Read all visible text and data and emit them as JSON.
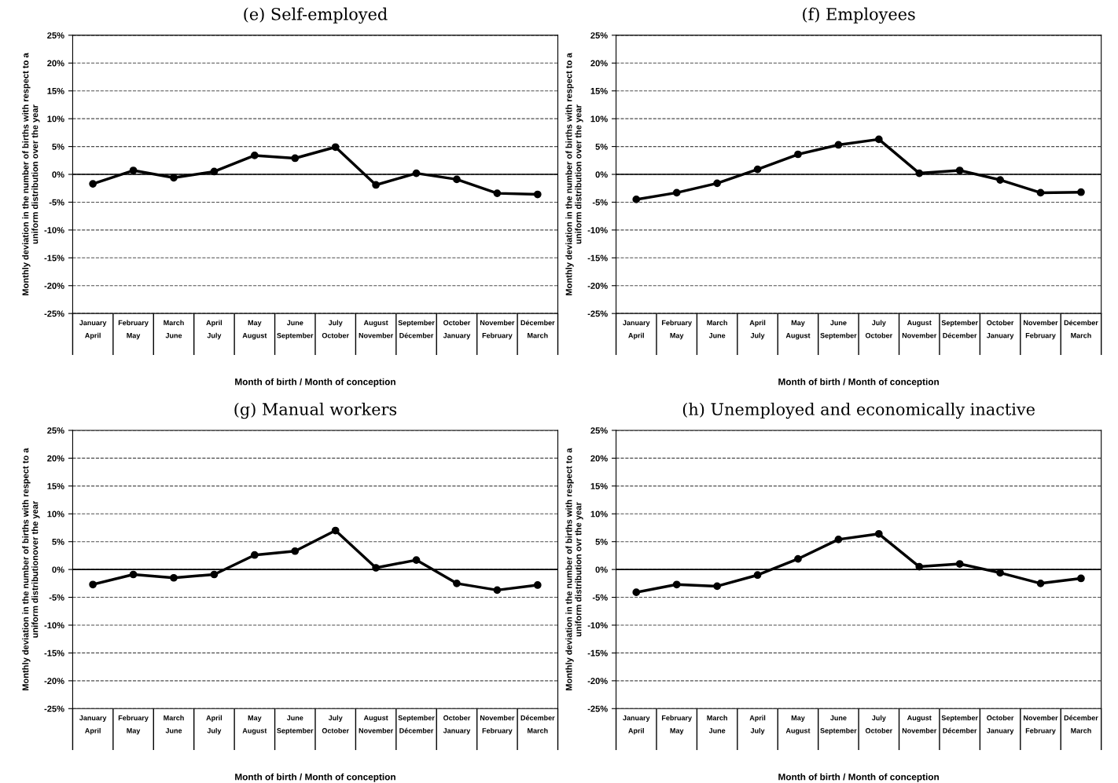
{
  "chart_data": [
    {
      "type": "line",
      "title": "(e) Self-employed",
      "xlabel": "Month of birth / Month of conception",
      "ylabel": "Monthly deviation in the number of births with respect to a\nuniform distribution over the year",
      "categories": [
        "January\nApril",
        "February\nMay",
        "March\nJune",
        "April\nJuly",
        "May\nAugust",
        "June\nSeptember",
        "July\nOctober",
        "August\nNovember",
        "September\nDécember",
        "October\nJanuary",
        "November\nFebruary",
        "Décember\nMarch"
      ],
      "series": [
        {
          "color": "#000000",
          "values": [
            -1.7,
            0.7,
            -0.6,
            0.5,
            3.4,
            2.9,
            4.9,
            -1.9,
            0.2,
            -0.9,
            -3.4,
            -3.6
          ]
        }
      ],
      "ylim": [
        -25,
        25
      ],
      "yticks": [
        {
          "value": -25,
          "label": "-25%"
        },
        {
          "value": -20,
          "label": "-20%"
        },
        {
          "value": -15,
          "label": "-15%"
        },
        {
          "value": -10,
          "label": "-10%"
        },
        {
          "value": -5,
          "label": "-5%"
        },
        {
          "value": 0,
          "label": "0%"
        },
        {
          "value": 5,
          "label": "5%"
        },
        {
          "value": 10,
          "label": "10%"
        },
        {
          "value": 15,
          "label": "15%"
        },
        {
          "value": 20,
          "label": "20%"
        },
        {
          "value": 25,
          "label": "25%"
        }
      ],
      "ref_lines": [
        {
          "axis": "y",
          "value": 0,
          "color": "#000000",
          "line_style": "solid"
        }
      ],
      "grid": "y",
      "marker": "circle",
      "line_style": "solid",
      "legend": false
    },
    {
      "type": "line",
      "title": "(f) Employees",
      "xlabel": "Month of birth / Month of conception",
      "ylabel": "Monthly deviation in the number of births with respect to a\nuniform distribution over the year",
      "categories": [
        "January\nApril",
        "February\nMay",
        "March\nJune",
        "April\nJuly",
        "May\nAugust",
        "June\nSeptember",
        "July\nOctober",
        "August\nNovember",
        "September\nDécember",
        "October\nJanuary",
        "November\nFebruary",
        "Décember\nMarch"
      ],
      "series": [
        {
          "color": "#000000",
          "values": [
            -4.5,
            -3.3,
            -1.6,
            0.9,
            3.6,
            5.3,
            6.3,
            0.2,
            0.7,
            -1.0,
            -3.3,
            -3.2
          ]
        }
      ],
      "ylim": [
        -25,
        25
      ],
      "yticks": [
        {
          "value": -25,
          "label": "-25%"
        },
        {
          "value": -20,
          "label": "-20%"
        },
        {
          "value": -15,
          "label": "-15%"
        },
        {
          "value": -10,
          "label": "-10%"
        },
        {
          "value": -5,
          "label": "-5%"
        },
        {
          "value": 0,
          "label": "0%"
        },
        {
          "value": 5,
          "label": "5%"
        },
        {
          "value": 10,
          "label": "10%"
        },
        {
          "value": 15,
          "label": "15%"
        },
        {
          "value": 20,
          "label": "20%"
        },
        {
          "value": 25,
          "label": "25%"
        }
      ],
      "ref_lines": [
        {
          "axis": "y",
          "value": 0,
          "color": "#000000",
          "line_style": "solid"
        }
      ],
      "grid": "y",
      "marker": "circle",
      "line_style": "solid",
      "legend": false
    },
    {
      "type": "line",
      "title": "(g) Manual workers",
      "xlabel": "Month of birth / Month of conception",
      "ylabel": "Monthly deviation in the number of births with respect to a\nuniform distributionover the year",
      "categories": [
        "January\nApril",
        "February\nMay",
        "March\nJune",
        "April\nJuly",
        "May\nAugust",
        "June\nSeptember",
        "July\nOctober",
        "August\nNovember",
        "September\nDécember",
        "October\nJanuary",
        "November\nFebruary",
        "Décember\nMarch"
      ],
      "series": [
        {
          "color": "#000000",
          "values": [
            -2.7,
            -0.9,
            -1.5,
            -0.9,
            2.6,
            3.3,
            7.0,
            0.3,
            1.7,
            -2.5,
            -3.7,
            -2.8
          ]
        }
      ],
      "ylim": [
        -25,
        25
      ],
      "yticks": [
        {
          "value": -25,
          "label": "-25%"
        },
        {
          "value": -20,
          "label": "-20%"
        },
        {
          "value": -15,
          "label": "-15%"
        },
        {
          "value": -10,
          "label": "-10%"
        },
        {
          "value": -5,
          "label": "-5%"
        },
        {
          "value": 0,
          "label": "0%"
        },
        {
          "value": 5,
          "label": "5%"
        },
        {
          "value": 10,
          "label": "10%"
        },
        {
          "value": 15,
          "label": "15%"
        },
        {
          "value": 20,
          "label": "20%"
        },
        {
          "value": 25,
          "label": "25%"
        }
      ],
      "ref_lines": [
        {
          "axis": "y",
          "value": 0,
          "color": "#000000",
          "line_style": "solid"
        }
      ],
      "grid": "y",
      "marker": "circle",
      "line_style": "solid",
      "legend": false
    },
    {
      "type": "line",
      "title": "(h) Unemployed and economically inactive",
      "xlabel": "Month of birth / Month of conception",
      "ylabel": "Monthly deviation in the number of births with respect to a\nuniform distribution ovr the year",
      "categories": [
        "January\nApril",
        "February\nMay",
        "March\nJune",
        "April\nJuly",
        "May\nAugust",
        "June\nSeptember",
        "July\nOctober",
        "August\nNovember",
        "September\nDécember",
        "October\nJanuary",
        "November\nFebruary",
        "Décember\nMarch"
      ],
      "series": [
        {
          "color": "#000000",
          "values": [
            -4.1,
            -2.7,
            -3.0,
            -1.0,
            1.9,
            5.4,
            6.4,
            0.5,
            1.0,
            -0.6,
            -2.5,
            -1.6
          ]
        }
      ],
      "ylim": [
        -25,
        25
      ],
      "yticks": [
        {
          "value": -25,
          "label": "-25%"
        },
        {
          "value": -20,
          "label": "-20%"
        },
        {
          "value": -15,
          "label": "-15%"
        },
        {
          "value": -10,
          "label": "-10%"
        },
        {
          "value": -5,
          "label": "-5%"
        },
        {
          "value": 0,
          "label": "0%"
        },
        {
          "value": 5,
          "label": "5%"
        },
        {
          "value": 10,
          "label": "10%"
        },
        {
          "value": 15,
          "label": "15%"
        },
        {
          "value": 20,
          "label": "20%"
        },
        {
          "value": 25,
          "label": "25%"
        }
      ],
      "ref_lines": [
        {
          "axis": "y",
          "value": 0,
          "color": "#000000",
          "line_style": "solid"
        }
      ],
      "grid": "y",
      "marker": "circle",
      "line_style": "solid",
      "legend": false
    }
  ]
}
